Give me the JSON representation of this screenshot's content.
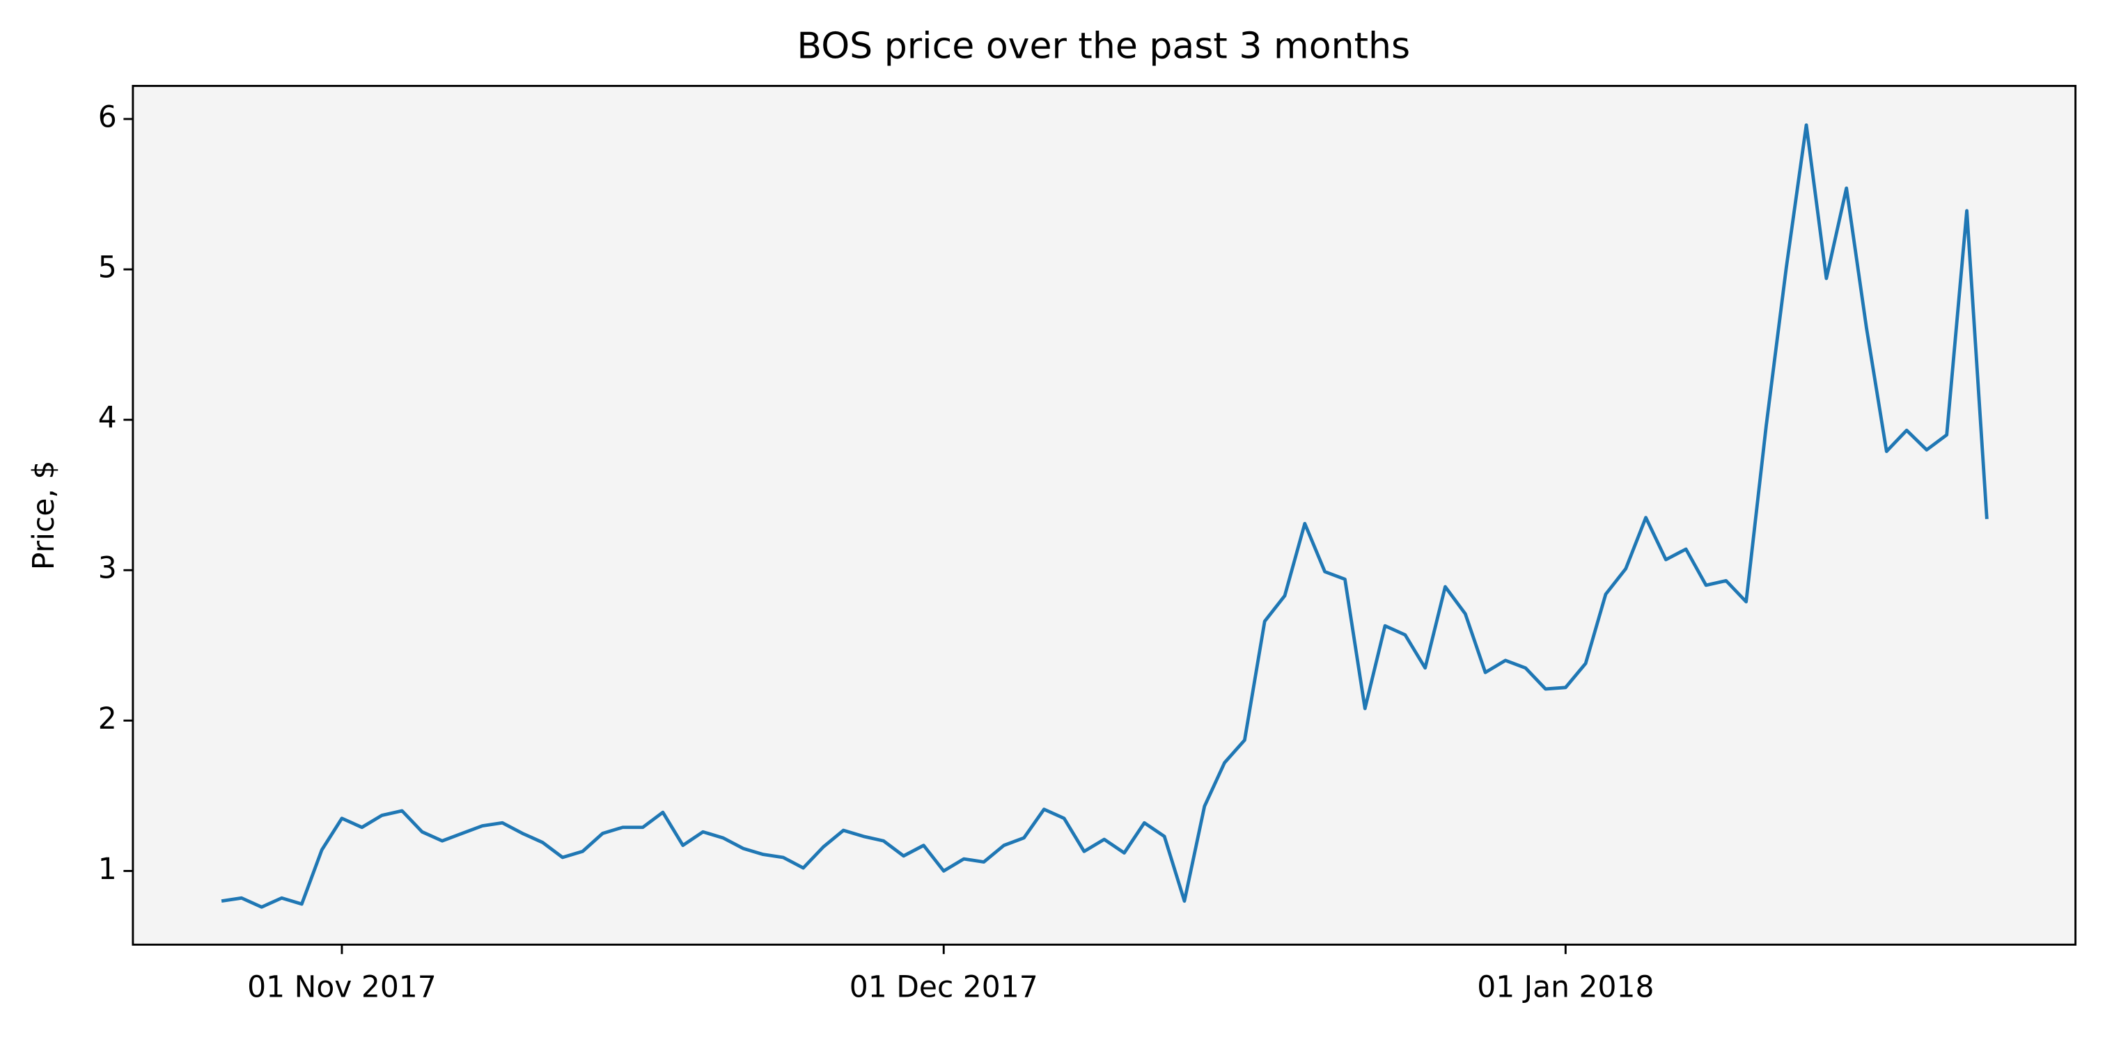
{
  "chart_data": {
    "type": "line",
    "title": "BOS price over the past 3 months",
    "y_label": "Price, $",
    "color": "#1f77b4",
    "grid": false,
    "x": [
      "2017-10-26",
      "2017-10-27",
      "2017-10-28",
      "2017-10-29",
      "2017-10-30",
      "2017-10-31",
      "2017-11-01",
      "2017-11-02",
      "2017-11-03",
      "2017-11-04",
      "2017-11-05",
      "2017-11-06",
      "2017-11-07",
      "2017-11-08",
      "2017-11-09",
      "2017-11-10",
      "2017-11-11",
      "2017-11-12",
      "2017-11-13",
      "2017-11-14",
      "2017-11-15",
      "2017-11-16",
      "2017-11-17",
      "2017-11-18",
      "2017-11-19",
      "2017-11-20",
      "2017-11-21",
      "2017-11-22",
      "2017-11-23",
      "2017-11-24",
      "2017-11-25",
      "2017-11-26",
      "2017-11-27",
      "2017-11-28",
      "2017-11-29",
      "2017-11-30",
      "2017-12-01",
      "2017-12-02",
      "2017-12-03",
      "2017-12-04",
      "2017-12-05",
      "2017-12-06",
      "2017-12-07",
      "2017-12-08",
      "2017-12-09",
      "2017-12-10",
      "2017-12-11",
      "2017-12-12",
      "2017-12-13",
      "2017-12-14",
      "2017-12-15",
      "2017-12-16",
      "2017-12-17",
      "2017-12-18",
      "2017-12-19",
      "2017-12-20",
      "2017-12-21",
      "2017-12-22",
      "2017-12-23",
      "2017-12-24",
      "2017-12-25",
      "2017-12-26",
      "2017-12-27",
      "2017-12-28",
      "2017-12-29",
      "2017-12-30",
      "2017-12-31",
      "2018-01-01",
      "2018-01-02",
      "2018-01-03",
      "2018-01-04",
      "2018-01-05",
      "2018-01-06",
      "2018-01-07",
      "2018-01-08",
      "2018-01-09",
      "2018-01-10",
      "2018-01-11",
      "2018-01-12",
      "2018-01-13",
      "2018-01-14",
      "2018-01-15",
      "2018-01-16",
      "2018-01-17",
      "2018-01-18",
      "2018-01-19",
      "2018-01-20",
      "2018-01-21",
      "2018-01-22"
    ],
    "values": [
      0.8,
      0.82,
      0.76,
      0.82,
      0.78,
      1.14,
      1.35,
      1.29,
      1.37,
      1.4,
      1.26,
      1.2,
      1.25,
      1.3,
      1.32,
      1.25,
      1.19,
      1.09,
      1.13,
      1.25,
      1.29,
      1.29,
      1.39,
      1.17,
      1.26,
      1.22,
      1.15,
      1.11,
      1.09,
      1.02,
      1.16,
      1.27,
      1.23,
      1.2,
      1.1,
      1.17,
      1.0,
      1.08,
      1.06,
      1.17,
      1.22,
      1.41,
      1.35,
      1.13,
      1.21,
      1.12,
      1.32,
      1.23,
      0.8,
      1.43,
      1.72,
      1.87,
      2.66,
      2.83,
      3.31,
      2.99,
      2.94,
      2.08,
      2.63,
      2.57,
      2.35,
      2.89,
      2.71,
      2.32,
      2.4,
      2.35,
      2.21,
      2.22,
      2.38,
      2.84,
      3.01,
      3.35,
      3.07,
      3.14,
      2.9,
      2.93,
      2.79,
      3.96,
      5.01,
      5.96,
      4.94,
      5.54,
      4.61,
      3.79,
      3.93,
      3.8,
      3.9,
      5.39,
      3.34
    ],
    "xlim": [
      "2017-10-21T14:00Z",
      "2018-01-26T10:00Z"
    ],
    "xticks": [
      {
        "value": "2017-11-01",
        "label": "01 Nov 2017"
      },
      {
        "value": "2017-12-01",
        "label": "01 Dec 2017"
      },
      {
        "value": "2018-01-01",
        "label": "01 Jan 2018"
      }
    ],
    "ylim": [
      0.51,
      6.22
    ],
    "yticks": [
      1,
      2,
      3,
      4,
      5,
      6
    ]
  }
}
